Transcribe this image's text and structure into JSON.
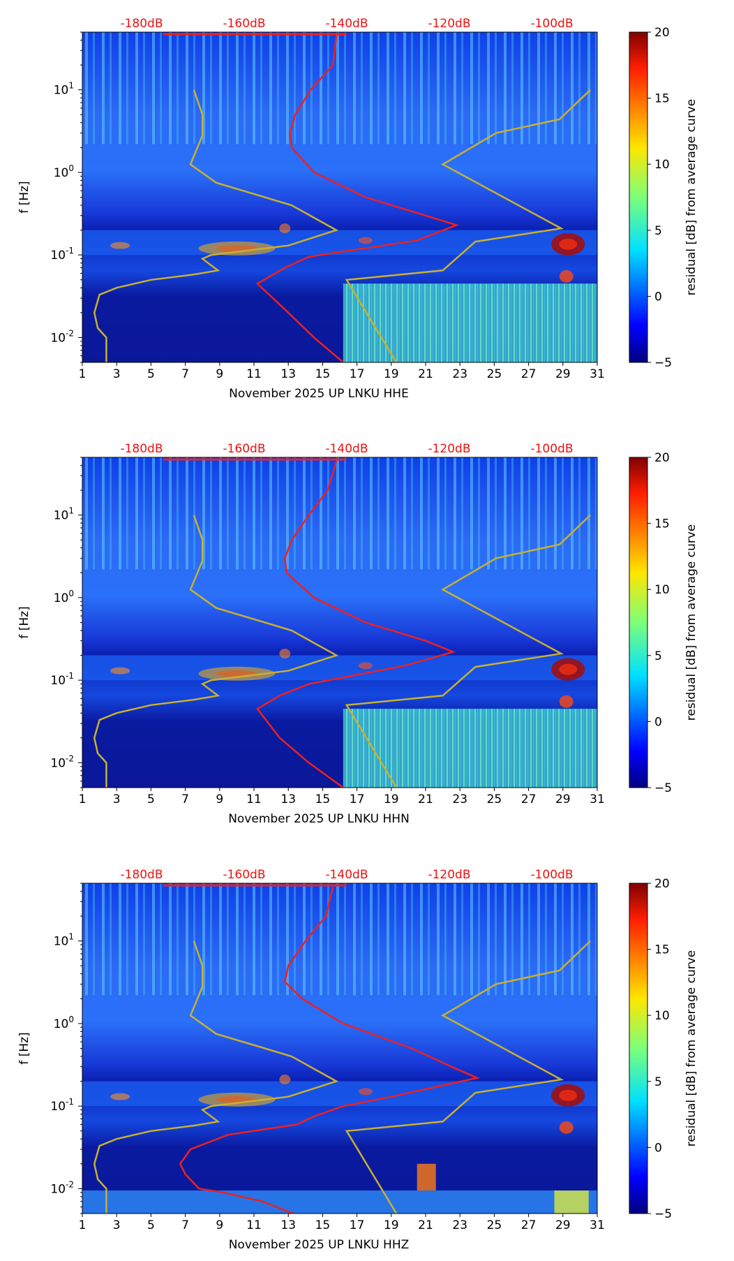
{
  "chart_data": [
    {
      "type": "heatmap",
      "panel": "HHE",
      "xlabel": "November 2025 UP LNKU  HHE",
      "ylabel": "f [Hz]",
      "x_ticks": [
        "1",
        "3",
        "5",
        "7",
        "9",
        "11",
        "13",
        "15",
        "17",
        "19",
        "21",
        "23",
        "25",
        "27",
        "29",
        "31"
      ],
      "y_ticks": [
        "10^-2",
        "10^-1",
        "10^0",
        "10^1"
      ],
      "xlim": [
        1,
        31
      ],
      "ylim_hz": [
        0.005,
        50
      ],
      "top_axis_labels": [
        "-180dB",
        "-160dB",
        "-140dB",
        "-120dB",
        "-100dB"
      ],
      "colorbar": {
        "label": "residual [dB] from average curve",
        "ticks": [
          "-5",
          "0",
          "5",
          "10",
          "15",
          "20"
        ],
        "range": [
          -5,
          20
        ]
      },
      "noise_model_low": [
        [
          2.4,
          0.005
        ],
        [
          2.4,
          0.01
        ],
        [
          1.9,
          0.013
        ],
        [
          1.7,
          0.02
        ],
        [
          2.0,
          0.033
        ],
        [
          3.0,
          0.04
        ],
        [
          5.0,
          0.05
        ],
        [
          7.5,
          0.058
        ],
        [
          8.9,
          0.065
        ],
        [
          8.0,
          0.09
        ],
        [
          8.5,
          0.1
        ],
        [
          13,
          0.13
        ],
        [
          15.8,
          0.2
        ],
        [
          13.2,
          0.4
        ],
        [
          8.8,
          0.75
        ],
        [
          7.3,
          1.25
        ],
        [
          8,
          2.8
        ],
        [
          8,
          5
        ],
        [
          7.5,
          10
        ]
      ],
      "noise_model_high": [
        [
          19.3,
          0.005
        ],
        [
          16.4,
          0.05
        ],
        [
          22.0,
          0.065
        ],
        [
          23.9,
          0.145
        ],
        [
          28.9,
          0.21
        ],
        [
          22.0,
          1.25
        ],
        [
          25.1,
          3
        ],
        [
          28.8,
          4.4
        ],
        [
          30.6,
          10
        ]
      ],
      "average_curve": [
        [
          16.2,
          0.005
        ],
        [
          14.5,
          0.01
        ],
        [
          13.0,
          0.02
        ],
        [
          11.2,
          0.045
        ],
        [
          12.8,
          0.07
        ],
        [
          14.2,
          0.095
        ],
        [
          20.5,
          0.15
        ],
        [
          22.8,
          0.23
        ],
        [
          21.0,
          0.3
        ],
        [
          17.5,
          0.5
        ],
        [
          14.5,
          1
        ],
        [
          13.2,
          2
        ],
        [
          13.1,
          3
        ],
        [
          13.4,
          5
        ],
        [
          14.3,
          10
        ],
        [
          15.6,
          20
        ],
        [
          15.8,
          45
        ]
      ]
    },
    {
      "type": "heatmap",
      "panel": "HHN",
      "xlabel": "November 2025 UP LNKU  HHN",
      "ylabel": "f [Hz]",
      "x_ticks": [
        "1",
        "3",
        "5",
        "7",
        "9",
        "11",
        "13",
        "15",
        "17",
        "19",
        "21",
        "23",
        "25",
        "27",
        "29",
        "31"
      ],
      "y_ticks": [
        "10^-2",
        "10^-1",
        "10^0",
        "10^1"
      ],
      "xlim": [
        1,
        31
      ],
      "ylim_hz": [
        0.005,
        50
      ],
      "top_axis_labels": [
        "-180dB",
        "-160dB",
        "-140dB",
        "-120dB",
        "-100dB"
      ],
      "colorbar": {
        "label": "residual [dB] from average curve",
        "ticks": [
          "-5",
          "0",
          "5",
          "10",
          "15",
          "20"
        ],
        "range": [
          -5,
          20
        ]
      },
      "noise_model_low": [
        [
          2.4,
          0.005
        ],
        [
          2.4,
          0.01
        ],
        [
          1.9,
          0.013
        ],
        [
          1.7,
          0.02
        ],
        [
          2.0,
          0.033
        ],
        [
          3.0,
          0.04
        ],
        [
          5.0,
          0.05
        ],
        [
          7.5,
          0.058
        ],
        [
          8.9,
          0.065
        ],
        [
          8.0,
          0.09
        ],
        [
          8.5,
          0.1
        ],
        [
          13,
          0.13
        ],
        [
          15.8,
          0.2
        ],
        [
          13.2,
          0.4
        ],
        [
          8.8,
          0.75
        ],
        [
          7.3,
          1.25
        ],
        [
          8,
          2.8
        ],
        [
          8,
          5
        ],
        [
          7.5,
          10
        ]
      ],
      "noise_model_high": [
        [
          19.3,
          0.005
        ],
        [
          16.4,
          0.05
        ],
        [
          22.0,
          0.065
        ],
        [
          23.9,
          0.145
        ],
        [
          28.9,
          0.21
        ],
        [
          22.0,
          1.25
        ],
        [
          25.1,
          3
        ],
        [
          28.8,
          4.4
        ],
        [
          30.6,
          10
        ]
      ],
      "average_curve": [
        [
          16.2,
          0.005
        ],
        [
          14.2,
          0.01
        ],
        [
          12.5,
          0.02
        ],
        [
          11.2,
          0.045
        ],
        [
          12.5,
          0.065
        ],
        [
          14.2,
          0.09
        ],
        [
          19.8,
          0.15
        ],
        [
          22.6,
          0.22
        ],
        [
          21.0,
          0.3
        ],
        [
          17.5,
          0.5
        ],
        [
          14.5,
          1
        ],
        [
          12.9,
          2
        ],
        [
          12.8,
          3
        ],
        [
          13.2,
          5
        ],
        [
          14.2,
          10
        ],
        [
          15.3,
          20
        ],
        [
          15.8,
          45
        ]
      ]
    },
    {
      "type": "heatmap",
      "panel": "HHZ",
      "xlabel": "November 2025 UP LNKU  HHZ",
      "ylabel": "f [Hz]",
      "x_ticks": [
        "1",
        "3",
        "5",
        "7",
        "9",
        "11",
        "13",
        "15",
        "17",
        "19",
        "21",
        "23",
        "25",
        "27",
        "29",
        "31"
      ],
      "y_ticks": [
        "10^-2",
        "10^-1",
        "10^0",
        "10^1"
      ],
      "xlim": [
        1,
        31
      ],
      "ylim_hz": [
        0.005,
        50
      ],
      "top_axis_labels": [
        "-180dB",
        "-160dB",
        "-140dB",
        "-120dB",
        "-100dB"
      ],
      "colorbar": {
        "label": "residual [dB] from average curve",
        "ticks": [
          "-5",
          "0",
          "5",
          "10",
          "15",
          "20"
        ],
        "range": [
          -5,
          20
        ]
      },
      "noise_model_low": [
        [
          2.4,
          0.005
        ],
        [
          2.4,
          0.01
        ],
        [
          1.9,
          0.013
        ],
        [
          1.7,
          0.02
        ],
        [
          2.0,
          0.033
        ],
        [
          3.0,
          0.04
        ],
        [
          5.0,
          0.05
        ],
        [
          7.5,
          0.058
        ],
        [
          8.9,
          0.065
        ],
        [
          8.0,
          0.09
        ],
        [
          8.5,
          0.1
        ],
        [
          13,
          0.13
        ],
        [
          15.8,
          0.2
        ],
        [
          13.2,
          0.4
        ],
        [
          8.8,
          0.75
        ],
        [
          7.3,
          1.25
        ],
        [
          8,
          2.8
        ],
        [
          8,
          5
        ],
        [
          7.5,
          10
        ]
      ],
      "noise_model_high": [
        [
          19.3,
          0.005
        ],
        [
          16.4,
          0.05
        ],
        [
          22.0,
          0.065
        ],
        [
          23.9,
          0.145
        ],
        [
          28.9,
          0.21
        ],
        [
          22.0,
          1.25
        ],
        [
          25.1,
          3
        ],
        [
          28.8,
          4.4
        ],
        [
          30.6,
          10
        ]
      ],
      "average_curve": [
        [
          13.3,
          0.005
        ],
        [
          11.5,
          0.007
        ],
        [
          9.2,
          0.009
        ],
        [
          7.8,
          0.01
        ],
        [
          7.0,
          0.015
        ],
        [
          6.7,
          0.02
        ],
        [
          7.3,
          0.03
        ],
        [
          9.5,
          0.045
        ],
        [
          13.5,
          0.06
        ],
        [
          14.5,
          0.075
        ],
        [
          16.2,
          0.1
        ],
        [
          19.0,
          0.13
        ],
        [
          24.0,
          0.22
        ],
        [
          22.5,
          0.3
        ],
        [
          20.2,
          0.5
        ],
        [
          16.2,
          1
        ],
        [
          13.8,
          2
        ],
        [
          12.8,
          3.2
        ],
        [
          13.0,
          5
        ],
        [
          14.0,
          10
        ],
        [
          15.2,
          20
        ],
        [
          15.6,
          45
        ]
      ]
    }
  ],
  "colors": {
    "average_curve": "#ee2020",
    "noise_model": "#c8b030",
    "top_labels": "#ee1111"
  }
}
